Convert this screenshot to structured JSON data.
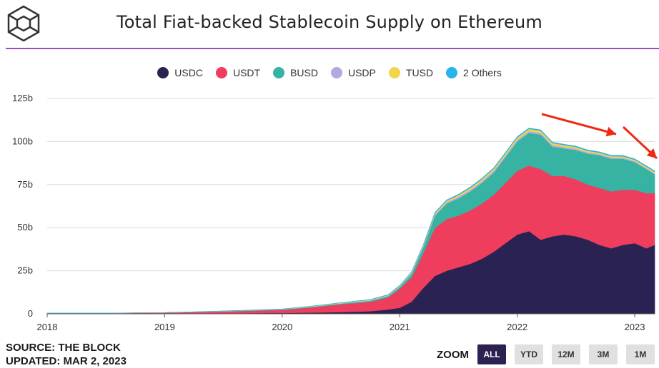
{
  "header": {
    "title": "Total Fiat-backed Stablecoin Supply on Ethereum"
  },
  "footer": {
    "source": "SOURCE: THE BLOCK",
    "updated": "UPDATED: MAR 2, 2023"
  },
  "zoom": {
    "label": "ZOOM",
    "buttons": [
      "ALL",
      "YTD",
      "12M",
      "3M",
      "1M"
    ],
    "active": "ALL"
  },
  "colors": {
    "USDC": "#2b2254",
    "USDT": "#ee3d5d",
    "BUSD": "#36b3a3",
    "USDP": "#b4a9df",
    "TUSD": "#f2d54a",
    "Others": "#27b4e8",
    "accent_rule": "#9b4dcc",
    "arrows": "#ee2a14"
  },
  "chart_data": {
    "type": "area",
    "stacked": true,
    "title": "Total Fiat-backed Stablecoin Supply on Ethereum",
    "ylim": [
      0,
      125
    ],
    "y_unit": "b",
    "yticks": [
      "0",
      "25b",
      "50b",
      "75b",
      "100b",
      "125b"
    ],
    "xticks": [
      "2018",
      "2019",
      "2020",
      "2021",
      "2022",
      "2023"
    ],
    "legend_position": "top-center",
    "grid": true,
    "x": [
      2018.0,
      2018.5,
      2019.0,
      2019.5,
      2020.0,
      2020.25,
      2020.5,
      2020.75,
      2020.9,
      2021.0,
      2021.1,
      2021.2,
      2021.3,
      2021.4,
      2021.5,
      2021.6,
      2021.7,
      2021.8,
      2021.9,
      2022.0,
      2022.1,
      2022.2,
      2022.3,
      2022.4,
      2022.5,
      2022.6,
      2022.7,
      2022.8,
      2022.9,
      2023.0,
      2023.1,
      2023.17
    ],
    "series": [
      {
        "name": "USDC",
        "values": [
          0.1,
          0.1,
          0.2,
          0.3,
          0.5,
          0.7,
          1.0,
          1.5,
          2.5,
          3.5,
          7,
          15,
          22,
          25,
          27,
          29,
          32,
          36,
          41,
          46,
          48,
          43,
          45,
          46,
          45,
          43,
          40,
          38,
          40,
          41,
          38,
          40
        ]
      },
      {
        "name": "USDT",
        "values": [
          0.3,
          0.3,
          0.5,
          1.0,
          1.8,
          3.0,
          4.5,
          5.5,
          7.0,
          11,
          14,
          20,
          28,
          30,
          30,
          31,
          32,
          33,
          35,
          37,
          38,
          41,
          35,
          34,
          33,
          32,
          33,
          33,
          32,
          31,
          32,
          30
        ]
      },
      {
        "name": "BUSD",
        "values": [
          0,
          0,
          0,
          0.1,
          0.2,
          0.3,
          0.4,
          0.5,
          0.7,
          1.0,
          2.0,
          3.5,
          7,
          9,
          10,
          11,
          12,
          13,
          15,
          17,
          19,
          20,
          17,
          16,
          17,
          18,
          19,
          19,
          18,
          16,
          14,
          11
        ]
      },
      {
        "name": "USDP",
        "values": [
          0,
          0,
          0,
          0.1,
          0.1,
          0.2,
          0.2,
          0.3,
          0.3,
          0.4,
          0.5,
          0.6,
          0.7,
          0.8,
          0.9,
          0.9,
          1.0,
          1.0,
          1.0,
          1.0,
          1.0,
          1.0,
          0.9,
          0.8,
          0.8,
          0.7,
          0.7,
          0.7,
          0.6,
          0.6,
          0.5,
          0.5
        ]
      },
      {
        "name": "TUSD",
        "values": [
          0,
          0,
          0,
          0.1,
          0.1,
          0.2,
          0.3,
          0.3,
          0.4,
          0.4,
          0.5,
          0.6,
          0.8,
          0.9,
          1.0,
          1.1,
          1.2,
          1.2,
          1.2,
          1.3,
          1.3,
          1.3,
          1.2,
          1.1,
          1.0,
          0.9,
          0.8,
          0.8,
          0.8,
          0.8,
          0.9,
          0.9
        ]
      },
      {
        "name": "2 Others",
        "values": [
          0,
          0,
          0,
          0.1,
          0.1,
          0.1,
          0.1,
          0.2,
          0.2,
          0.2,
          0.3,
          0.3,
          0.4,
          0.4,
          0.5,
          0.5,
          0.5,
          0.5,
          0.5,
          0.5,
          0.5,
          0.5,
          0.5,
          0.5,
          0.5,
          0.5,
          0.5,
          0.5,
          0.5,
          0.5,
          0.5,
          0.5
        ]
      }
    ]
  }
}
